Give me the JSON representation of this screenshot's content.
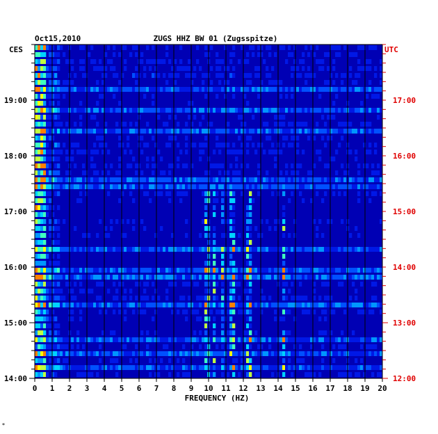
{
  "chart_data": {
    "type": "heatmap",
    "date": "Oct15,2010",
    "station": "ZUGS HHZ BW 01 (Zugsspitze)",
    "left_tz": "CES",
    "right_tz": "UTC",
    "xlabel": "FREQUENCY (HZ)",
    "x_ticks": [
      "0",
      "1",
      "2",
      "3",
      "4",
      "5",
      "6",
      "7",
      "8",
      "9",
      "10",
      "11",
      "12",
      "13",
      "14",
      "15",
      "16",
      "17",
      "18",
      "19",
      "20"
    ],
    "xlim": [
      0,
      20
    ],
    "y_ticks_left": [
      "19:00",
      "18:00",
      "17:00",
      "16:00",
      "15:00",
      "14:00"
    ],
    "y_ticks_right": [
      "17:00",
      "16:00",
      "15:00",
      "14:00",
      "13:00",
      "12:00"
    ],
    "time_range_local": [
      "14:00",
      "19:50"
    ],
    "rows": 48,
    "strong_bands_hz": [
      0.3,
      9.9,
      10.3,
      10.8,
      11.3,
      12.3,
      14.3
    ],
    "colors": {
      "background": "#0000b4",
      "text_left": "#000000",
      "text_right": "#e00000",
      "grid": "#000000"
    }
  },
  "corner_mark": "*"
}
